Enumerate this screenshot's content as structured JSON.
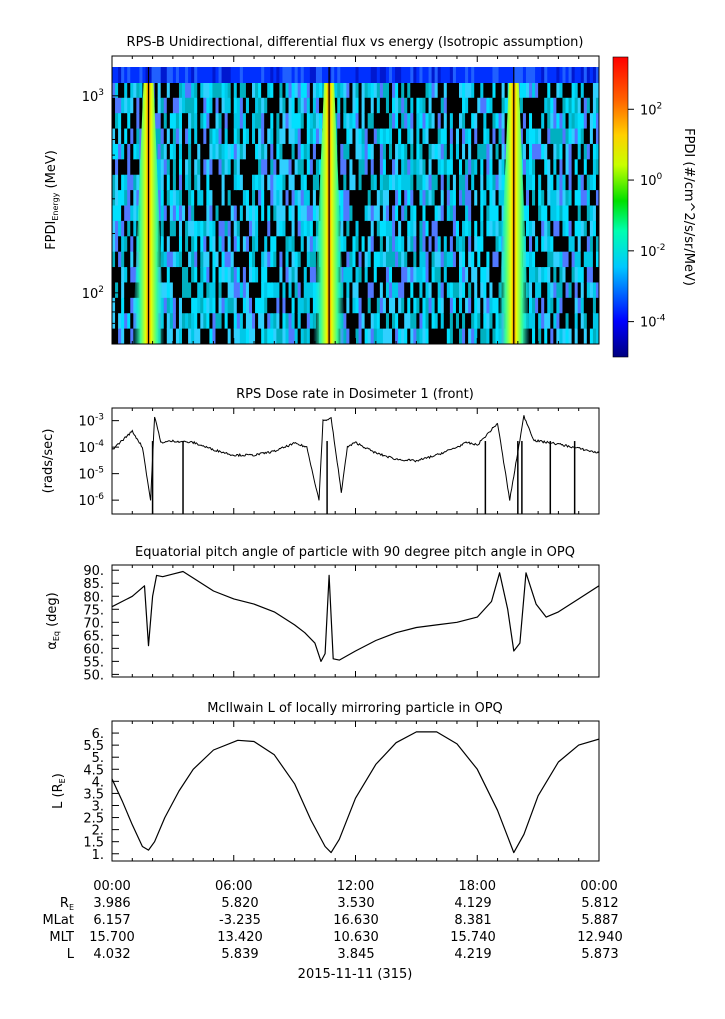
{
  "chart_data": [
    {
      "type": "heatmap",
      "title": "RPS-B  Unidirectional, differential flux vs energy (Isotropic assumption)",
      "ylabel_main": "FPDI",
      "ylabel_sub": "Energy",
      "ylabel_unit": "(MeV)",
      "yscale": "log",
      "y_ticks": [
        {
          "value": 100,
          "base": "10",
          "exp": "2"
        },
        {
          "value": 1000,
          "base": "10",
          "exp": "3"
        }
      ],
      "ylim": [
        55,
        1400
      ],
      "colorbar": {
        "label": "FPDI (#/cm^2/s/sr/MeV)",
        "scale": "log",
        "ticks": [
          {
            "value": 0.0001,
            "base": "10",
            "exp": "-4"
          },
          {
            "value": 0.01,
            "base": "10",
            "exp": "-2"
          },
          {
            "value": 1,
            "base": "10",
            "exp": "0"
          },
          {
            "value": 100,
            "base": "10",
            "exp": "2"
          }
        ],
        "range": [
          1e-05,
          3000
        ]
      },
      "peak_times_hours": [
        1.8,
        10.7,
        19.8
      ]
    },
    {
      "type": "line",
      "title": "RPS  Dose rate in Dosimeter 1 (front)",
      "ylabel": "(rads/sec)",
      "yscale": "log",
      "y_ticks": [
        {
          "value": 1e-06,
          "base": "10",
          "exp": "-6"
        },
        {
          "value": 1e-05,
          "base": "10",
          "exp": "-5"
        },
        {
          "value": 0.0001,
          "base": "10",
          "exp": "-4"
        },
        {
          "value": 0.001,
          "base": "10",
          "exp": "-3"
        }
      ],
      "ylim": [
        3e-07,
        0.003
      ],
      "x_hours": [
        0,
        1,
        1.5,
        1.9,
        2.1,
        2.4,
        3,
        4,
        5,
        6,
        7,
        8,
        9,
        9.6,
        10.2,
        10.4,
        10.8,
        11.3,
        11.6,
        12,
        13,
        14,
        15,
        16,
        17,
        17.5,
        18,
        19,
        19.6,
        20.3,
        20.8,
        21,
        22,
        23,
        24
      ],
      "values": [
        8e-05,
        0.0004,
        0.0001,
        1e-06,
        0.0015,
        0.00015,
        0.00017,
        0.00015,
        8e-05,
        5e-05,
        5e-05,
        7e-05,
        0.00014,
        0.0001,
        1e-06,
        0.001,
        0.0012,
        2e-06,
        0.0001,
        0.00015,
        6e-05,
        3.5e-05,
        3e-05,
        5e-05,
        0.0001,
        0.00015,
        0.00012,
        0.0008,
        1e-06,
        0.0015,
        0.00018,
        0.00017,
        0.00013,
        9e-05,
        6e-05
      ]
    },
    {
      "type": "line",
      "title": "Equatorial pitch angle of particle with 90 degree pitch angle in OPQ",
      "ylabel_main": "α",
      "ylabel_sub": "Eq",
      "ylabel_unit": "(deg)",
      "y_ticks": [
        50,
        55,
        60,
        65,
        70,
        75,
        80,
        85,
        90
      ],
      "y_tick_labels": [
        "50.",
        "55.",
        "60.",
        "65.",
        "70.",
        "75.",
        "80.",
        "85.",
        "90."
      ],
      "ylim": [
        49,
        92
      ],
      "x_hours": [
        0,
        1,
        1.6,
        1.8,
        2.0,
        2.2,
        2.5,
        3,
        3.5,
        4,
        5,
        6,
        7,
        8,
        9,
        9.5,
        10,
        10.3,
        10.5,
        10.7,
        10.9,
        11.2,
        12,
        13,
        14,
        15,
        16,
        17,
        18,
        18.7,
        19.1,
        19.5,
        19.8,
        20.1,
        20.4,
        20.9,
        21.4,
        22,
        23,
        24
      ],
      "values": [
        76,
        80,
        84,
        61,
        80,
        88,
        87.5,
        88.5,
        89.5,
        87,
        82,
        79,
        77,
        74,
        69,
        66,
        62,
        55,
        58,
        88,
        56,
        55.5,
        59,
        63,
        66,
        68,
        69,
        70,
        72,
        78,
        89,
        75,
        59,
        62,
        89,
        77,
        72,
        74,
        79,
        84
      ]
    },
    {
      "type": "line",
      "title": "McIlwain L of locally mirroring particle in OPQ",
      "ylabel_main": "L (R",
      "ylabel_sub": "E",
      "ylabel_unit": ")",
      "y_ticks": [
        1,
        1.5,
        2,
        2.5,
        3,
        3.5,
        4,
        4.5,
        5,
        5.5,
        6
      ],
      "y_tick_labels": [
        "1.",
        "1.5",
        "2.",
        "2.5",
        "3.",
        "3.5",
        "4.",
        "4.5",
        "5.",
        "5.5",
        "6."
      ],
      "ylim": [
        0.7,
        6.5
      ],
      "x_hours": [
        0,
        0.5,
        1,
        1.5,
        1.8,
        2.1,
        2.6,
        3.3,
        4,
        5,
        6.2,
        7,
        8,
        9,
        9.8,
        10.5,
        10.8,
        11.2,
        12,
        13,
        14,
        15,
        16,
        17,
        18,
        19,
        19.8,
        20.3,
        21,
        22,
        23,
        24
      ],
      "values": [
        4.1,
        3.2,
        2.2,
        1.3,
        1.15,
        1.5,
        2.5,
        3.6,
        4.5,
        5.3,
        5.7,
        5.65,
        5.1,
        3.9,
        2.4,
        1.3,
        1.05,
        1.6,
        3.3,
        4.7,
        5.6,
        6.05,
        6.05,
        5.55,
        4.5,
        2.8,
        1.05,
        1.8,
        3.4,
        4.8,
        5.5,
        5.75
      ]
    }
  ],
  "x_axis": {
    "tick_labels": [
      "00:00",
      "06:00",
      "12:00",
      "18:00",
      "00:00"
    ],
    "date_label": "2015-11-11 (315)"
  },
  "ephemeris": {
    "rows": [
      {
        "label": "R",
        "label_sub": "E",
        "values": [
          "3.986",
          "5.820",
          "3.530",
          "4.129",
          "5.812"
        ]
      },
      {
        "label": "MLat",
        "label_sub": "",
        "values": [
          "6.157",
          "-3.235",
          "16.630",
          "8.381",
          "5.887"
        ]
      },
      {
        "label": "MLT",
        "label_sub": "",
        "values": [
          "15.700",
          "13.420",
          "10.630",
          "15.740",
          "12.940"
        ]
      },
      {
        "label": "L",
        "label_sub": "",
        "values": [
          "4.032",
          "5.839",
          "3.845",
          "4.219",
          "5.873"
        ]
      }
    ]
  }
}
